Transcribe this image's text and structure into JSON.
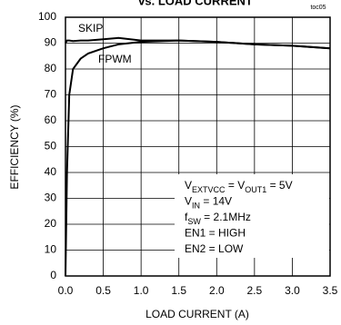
{
  "chart_data": {
    "type": "line",
    "title": "vs. LOAD CURRENT",
    "note": "toc05",
    "x_label": "LOAD CURRENT (A)",
    "y_label": "EFFICIENCY (%)",
    "x": [
      0,
      0.02,
      0.05,
      0.1,
      0.2,
      0.3,
      0.5,
      0.7,
      1.0,
      1.5,
      2.0,
      2.5,
      3.0,
      3.5
    ],
    "series": [
      {
        "name": "SKIP",
        "color": "#000000",
        "values": [
          90,
          91,
          91,
          90.8,
          91,
          91,
          91.5,
          92,
          91,
          91,
          90.5,
          89.5,
          89,
          88
        ]
      },
      {
        "name": "FPWM",
        "color": "#000000",
        "values": [
          0,
          40,
          70,
          80,
          84,
          86,
          88,
          89.5,
          90.5,
          91,
          90.5,
          89.5,
          89,
          88
        ]
      }
    ],
    "xlim": [
      0,
      3.5
    ],
    "ylim": [
      0,
      100
    ],
    "xticks": [
      {
        "value": 0,
        "label": "0.0"
      },
      0.5,
      {
        "value": 1,
        "label": "1.0"
      },
      1.5,
      {
        "value": 2,
        "label": "2.0"
      },
      2.5,
      {
        "value": 3,
        "label": "3.0"
      },
      3.5
    ],
    "yticks": [
      0,
      10,
      20,
      30,
      40,
      50,
      60,
      70,
      80,
      90,
      100
    ],
    "grid": true,
    "annotations": [
      [
        "V",
        "EXTVCC",
        " = V",
        "OUT1",
        " = 5V"
      ],
      [
        "V",
        "IN",
        " = 14V"
      ],
      [
        "f",
        "SW",
        " = 2.1MHz"
      ],
      [
        "EN1 = HIGH"
      ],
      [
        "EN2 = LOW"
      ]
    ]
  }
}
